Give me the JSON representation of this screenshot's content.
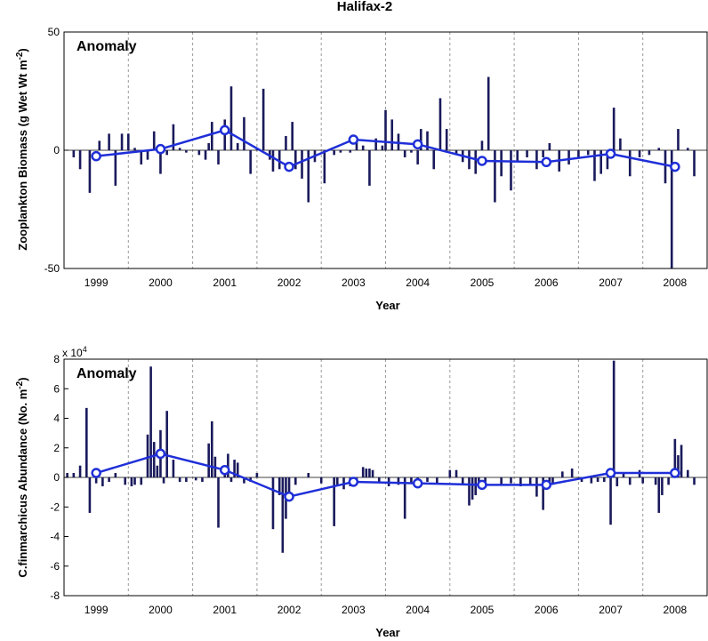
{
  "title": "Halifax-2",
  "chart_data": [
    {
      "type": "bar",
      "panel_text": "Anomaly",
      "xlabel": "Year",
      "ylabel": "Zooplankton Biomass (g Wet Wt m^-2)",
      "ylim": [
        -50,
        50
      ],
      "yticks": [
        -50,
        0,
        50
      ],
      "xlim": [
        1998.5,
        2008.5
      ],
      "xtick_labels": [
        "1999",
        "2000",
        "2001",
        "2002",
        "2003",
        "2004",
        "2005",
        "2006",
        "2007",
        "2008"
      ],
      "grid": "vertical dashed year separators",
      "series": [
        {
          "kind": "bar",
          "x": [
            1998.65,
            1998.75,
            1998.9,
            1999.05,
            1999.2,
            1999.3,
            1999.4,
            1999.5,
            1999.6,
            1999.7,
            1999.8,
            1999.9,
            2000.0,
            2000.1,
            2000.2,
            2000.3,
            2000.4,
            2000.6,
            2000.7,
            2000.75,
            2000.8,
            2000.9,
            2001.0,
            2001.1,
            2001.2,
            2001.3,
            2001.4,
            2001.5,
            2001.6,
            2001.7,
            2001.75,
            2001.85,
            2001.95,
            2002.05,
            2002.1,
            2002.2,
            2002.3,
            2002.4,
            2002.55,
            2002.7,
            2002.8,
            2002.95,
            2003.05,
            2003.15,
            2003.25,
            2003.35,
            2003.45,
            2003.5,
            2003.6,
            2003.7,
            2003.8,
            2003.9,
            2004.0,
            2004.05,
            2004.15,
            2004.25,
            2004.35,
            2004.45,
            2004.6,
            2004.7,
            2004.8,
            2004.9,
            2005.0,
            2005.1,
            2005.2,
            2005.3,
            2005.45,
            2005.55,
            2005.7,
            2005.85,
            2005.95,
            2006.05,
            2006.2,
            2006.35,
            2006.5,
            2006.65,
            2006.75,
            2006.85,
            2006.95,
            2007.05,
            2007.15,
            2007.3,
            2007.45,
            2007.6,
            2007.75,
            2007.85,
            2007.95,
            2008.05,
            2008.2,
            2008.3
          ],
          "values": [
            -3,
            -8,
            -18,
            4,
            7,
            -15,
            7,
            7,
            1,
            -6,
            -4,
            8,
            -10,
            -2,
            11,
            1,
            -1,
            -2,
            -4,
            3,
            12,
            -6,
            13,
            27,
            3,
            14,
            -10,
            1,
            26,
            -4,
            -9,
            -8,
            6,
            12,
            -8,
            -12,
            -22,
            -5,
            -14,
            -2,
            -1,
            -1,
            5,
            2,
            -15,
            5,
            2,
            17,
            13,
            7,
            -3,
            -1,
            -6,
            9,
            8,
            -8,
            22,
            9,
            -2,
            -5,
            -8,
            -10,
            4,
            31,
            -22,
            -11,
            -17,
            -5,
            -3,
            -8,
            -3,
            3,
            -9,
            -6,
            -3,
            -2,
            -13,
            -10,
            -8,
            18,
            5,
            -11,
            -3,
            -2,
            1,
            -14,
            -50,
            9,
            1,
            -11
          ]
        },
        {
          "kind": "line",
          "x": [
            1999,
            2000,
            2001,
            2002,
            2003,
            2004,
            2005,
            2006,
            2007,
            2008
          ],
          "values": [
            -2.5,
            0.5,
            8.5,
            -7,
            4.5,
            2.5,
            -4.5,
            -5,
            -1.5,
            -7
          ]
        }
      ]
    },
    {
      "type": "bar",
      "panel_text": "Anomaly",
      "multiplier": "x 10^4",
      "xlabel": "Year",
      "ylabel": "C.finmarchicus Abundance (No. m^-2)",
      "ylim": [
        -8,
        8
      ],
      "yticks": [
        -8,
        -6,
        -4,
        -2,
        0,
        2,
        4,
        6,
        8
      ],
      "xlim": [
        1998.5,
        2008.5
      ],
      "xtick_labels": [
        "1999",
        "2000",
        "2001",
        "2002",
        "2003",
        "2004",
        "2005",
        "2006",
        "2007",
        "2008"
      ],
      "grid": "vertical dashed year separators",
      "series": [
        {
          "kind": "bar",
          "x": [
            1998.55,
            1998.65,
            1998.75,
            1998.85,
            1998.9,
            1999.0,
            1999.1,
            1999.2,
            1999.3,
            1999.45,
            1999.55,
            1999.6,
            1999.7,
            1999.8,
            1999.85,
            1999.9,
            1999.95,
            2000.0,
            2000.05,
            2000.1,
            2000.2,
            2000.3,
            2000.4,
            2000.55,
            2000.65,
            2000.75,
            2000.8,
            2000.85,
            2000.9,
            2001.0,
            2001.05,
            2001.1,
            2001.15,
            2001.2,
            2001.3,
            2001.4,
            2001.5,
            2001.75,
            2001.85,
            2001.9,
            2001.95,
            2002.0,
            2002.1,
            2002.3,
            2002.5,
            2002.7,
            2002.75,
            2002.85,
            2002.95,
            2003.05,
            2003.15,
            2003.2,
            2003.25,
            2003.3,
            2003.4,
            2003.55,
            2003.7,
            2003.8,
            2003.9,
            2004.0,
            2004.15,
            2004.3,
            2004.5,
            2004.6,
            2004.7,
            2004.8,
            2004.85,
            2004.9,
            2004.95,
            2005.05,
            2005.3,
            2005.45,
            2005.6,
            2005.75,
            2005.85,
            2005.95,
            2006.05,
            2006.1,
            2006.25,
            2006.4,
            2006.55,
            2006.7,
            2006.8,
            2006.9,
            2007.0,
            2007.05,
            2007.1,
            2007.2,
            2007.3,
            2007.45,
            2007.5,
            2007.7,
            2007.75,
            2007.8,
            2007.9,
            2008.0,
            2008.05,
            2008.1,
            2008.2,
            2008.3
          ],
          "values": [
            0.3,
            0.3,
            0.8,
            4.7,
            -2.4,
            -0.4,
            -0.6,
            -0.3,
            0.3,
            -0.5,
            -0.6,
            -0.5,
            -0.5,
            2.9,
            7.5,
            2.4,
            0.8,
            3.2,
            -0.4,
            4.5,
            1.2,
            -0.3,
            -0.3,
            -0.2,
            -0.3,
            2.3,
            3.8,
            1.4,
            -3.4,
            0.4,
            1.6,
            -0.3,
            1.2,
            1.0,
            -0.4,
            -0.3,
            0.3,
            -3.5,
            -1.2,
            -5.1,
            -2.8,
            -1.3,
            -0.5,
            0.3,
            -0.4,
            -3.3,
            -0.5,
            -0.8,
            -0.6,
            -0.4,
            0.7,
            0.6,
            0.6,
            0.5,
            -0.3,
            -0.6,
            -0.5,
            -2.8,
            -0.4,
            -0.4,
            -0.3,
            -0.4,
            0.5,
            0.5,
            -0.5,
            -1.9,
            -1.5,
            -1.2,
            -0.3,
            -0.4,
            -0.5,
            -0.4,
            -0.6,
            -0.5,
            -1.3,
            -2.2,
            -0.6,
            -0.5,
            0.4,
            0.6,
            -0.3,
            -0.4,
            -0.3,
            -0.3,
            -3.2,
            7.9,
            -0.6,
            0.3,
            -0.5,
            0.5,
            -0.4,
            -0.5,
            -2.4,
            -1.2,
            -0.5,
            2.6,
            1.5,
            2.2,
            0.5,
            -0.5
          ]
        },
        {
          "kind": "line",
          "x": [
            1999,
            2000,
            2001,
            2002,
            2003,
            2004,
            2005,
            2006,
            2007,
            2008
          ],
          "values": [
            0.3,
            1.6,
            0.5,
            -1.3,
            -0.3,
            -0.4,
            -0.5,
            -0.5,
            0.3,
            0.3
          ]
        }
      ]
    }
  ]
}
